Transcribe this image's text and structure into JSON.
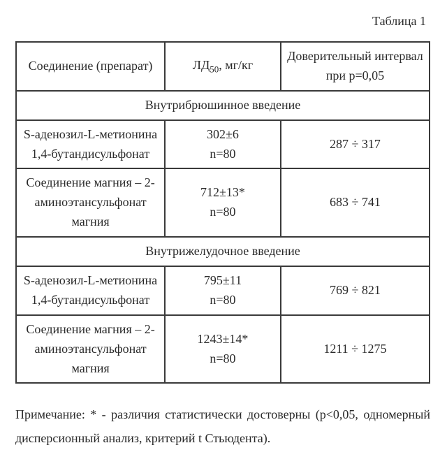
{
  "caption": "Таблица 1",
  "header": {
    "col1": "Соединение (препарат)",
    "col2_pre": "ЛД",
    "col2_sub": "50",
    "col2_post": ", мг/кг",
    "col3_l1": "Доверительный интервал",
    "col3_l2": "при p=0,05"
  },
  "section1": "Внутрибрюшинное введение",
  "row1": {
    "name_l1": "S-аденозил-L-метионина",
    "name_l2": "1,4-бутандисульфонат",
    "ld_l1": "302±6",
    "ld_l2": "n=80",
    "ci": "287 ÷ 317"
  },
  "row2": {
    "name_l1": "Соединение магния – 2-",
    "name_l2": "аминоэтансульфонат",
    "name_l3": "магния",
    "ld_l1": "712±13*",
    "ld_l2": "n=80",
    "ci": "683 ÷ 741"
  },
  "section2": "Внутрижелудочное введение",
  "row3": {
    "name_l1": "S-аденозил-L-метионина",
    "name_l2": "1,4-бутандисульфонат",
    "ld_l1": "795±11",
    "ld_l2": "n=80",
    "ci": "769 ÷ 821"
  },
  "row4": {
    "name_l1": "Соединение магния – 2-",
    "name_l2": "аминоэтансульфонат",
    "name_l3": "магния",
    "ld_l1": "1243±14*",
    "ld_l2": "n=80",
    "ci": "1211 ÷ 1275"
  },
  "footnote": "Примечание: * - различия статистически достоверны (p<0,05, одномерный дисперсионный анализ, критерий t Стьюдента)."
}
